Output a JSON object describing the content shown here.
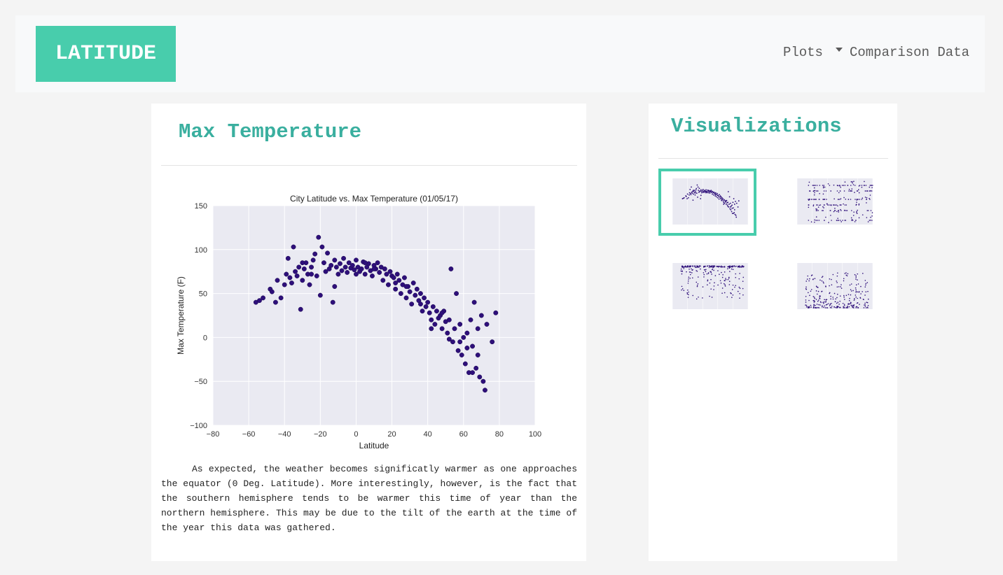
{
  "navbar": {
    "brand": "LATITUDE",
    "links": [
      {
        "label": "Plots",
        "has_caret": true
      },
      {
        "label": "Comparison Data",
        "has_caret": false
      }
    ]
  },
  "main": {
    "title": "Max Temperature",
    "description": "As expected, the weather becomes significatly warmer as one approaches the equator (0 Deg. Latitude). More interestingly, however, is the fact that the southern hemisphere tends to be warmer this time of year than the northern hemisphere. This may be due to the tilt of the earth at the time of the year this data was gathered."
  },
  "sidebar": {
    "title": "Visualizations",
    "thumbnails": [
      {
        "name": "max-temperature",
        "selected": true
      },
      {
        "name": "cloudiness",
        "selected": false
      },
      {
        "name": "humidity",
        "selected": false
      },
      {
        "name": "wind-speed",
        "selected": false
      }
    ]
  },
  "colors": {
    "accent": "#48cdac",
    "heading": "#3aaf9f",
    "plot_bg": "#eaeaf2",
    "marker": "#2e0f7a"
  },
  "chart_data": {
    "type": "scatter",
    "title": "City Latitude vs. Max Temperature (01/05/17)",
    "xlabel": "Latitude",
    "ylabel": "Max Temperature (F)",
    "xlim": [
      -80,
      100
    ],
    "ylim": [
      -100,
      150
    ],
    "xticks": [
      -80,
      -60,
      -40,
      -20,
      0,
      20,
      40,
      60,
      80,
      100
    ],
    "yticks": [
      -100,
      -50,
      0,
      50,
      100,
      150
    ],
    "grid": true,
    "series": [
      {
        "points": [
          [
            -56,
            40
          ],
          [
            -54,
            42
          ],
          [
            -52,
            45
          ],
          [
            -48,
            55
          ],
          [
            -47,
            52
          ],
          [
            -45,
            40
          ],
          [
            -44,
            65
          ],
          [
            -42,
            45
          ],
          [
            -40,
            60
          ],
          [
            -39,
            72
          ],
          [
            -38,
            90
          ],
          [
            -37,
            68
          ],
          [
            -36,
            62
          ],
          [
            -35,
            103
          ],
          [
            -34,
            75
          ],
          [
            -33,
            70
          ],
          [
            -32,
            80
          ],
          [
            -31,
            32
          ],
          [
            -30,
            65
          ],
          [
            -29,
            78
          ],
          [
            -28,
            85
          ],
          [
            -27,
            72
          ],
          [
            -26,
            60
          ],
          [
            -25,
            80
          ],
          [
            -24,
            88
          ],
          [
            -23,
            95
          ],
          [
            -22,
            70
          ],
          [
            -21,
            114
          ],
          [
            -20,
            48
          ],
          [
            -19,
            103
          ],
          [
            -18,
            85
          ],
          [
            -17,
            75
          ],
          [
            -16,
            96
          ],
          [
            -15,
            78
          ],
          [
            -14,
            82
          ],
          [
            -13,
            40
          ],
          [
            -12,
            88
          ],
          [
            -11,
            80
          ],
          [
            -10,
            72
          ],
          [
            -9,
            84
          ],
          [
            -8,
            76
          ],
          [
            -7,
            90
          ],
          [
            -6,
            80
          ],
          [
            -5,
            74
          ],
          [
            -4,
            85
          ],
          [
            -3,
            79
          ],
          [
            -2,
            82
          ],
          [
            -1,
            77
          ],
          [
            0,
            88
          ],
          [
            1,
            80
          ],
          [
            2,
            75
          ],
          [
            3,
            78
          ],
          [
            4,
            86
          ],
          [
            5,
            72
          ],
          [
            6,
            80
          ],
          [
            7,
            84
          ],
          [
            8,
            76
          ],
          [
            9,
            70
          ],
          [
            10,
            82
          ],
          [
            11,
            78
          ],
          [
            12,
            85
          ],
          [
            13,
            74
          ],
          [
            14,
            80
          ],
          [
            15,
            65
          ],
          [
            16,
            78
          ],
          [
            17,
            72
          ],
          [
            18,
            60
          ],
          [
            19,
            75
          ],
          [
            20,
            70
          ],
          [
            21,
            68
          ],
          [
            22,
            55
          ],
          [
            23,
            72
          ],
          [
            24,
            65
          ],
          [
            25,
            50
          ],
          [
            26,
            60
          ],
          [
            27,
            68
          ],
          [
            28,
            45
          ],
          [
            29,
            58
          ],
          [
            30,
            52
          ],
          [
            31,
            38
          ],
          [
            32,
            62
          ],
          [
            33,
            48
          ],
          [
            34,
            55
          ],
          [
            35,
            42
          ],
          [
            36,
            50
          ],
          [
            37,
            30
          ],
          [
            38,
            45
          ],
          [
            39,
            35
          ],
          [
            40,
            40
          ],
          [
            41,
            28
          ],
          [
            42,
            20
          ],
          [
            43,
            35
          ],
          [
            44,
            15
          ],
          [
            45,
            30
          ],
          [
            46,
            22
          ],
          [
            47,
            25
          ],
          [
            48,
            10
          ],
          [
            49,
            30
          ],
          [
            50,
            18
          ],
          [
            51,
            5
          ],
          [
            52,
            20
          ],
          [
            53,
            78
          ],
          [
            54,
            -5
          ],
          [
            55,
            10
          ],
          [
            56,
            50
          ],
          [
            57,
            -15
          ],
          [
            58,
            15
          ],
          [
            59,
            -20
          ],
          [
            60,
            0
          ],
          [
            61,
            -30
          ],
          [
            62,
            5
          ],
          [
            63,
            -40
          ],
          [
            64,
            20
          ],
          [
            65,
            -10
          ],
          [
            66,
            40
          ],
          [
            67,
            -35
          ],
          [
            68,
            10
          ],
          [
            69,
            -45
          ],
          [
            70,
            25
          ],
          [
            71,
            -50
          ],
          [
            72,
            -60
          ],
          [
            73,
            15
          ],
          [
            76,
            -5
          ],
          [
            78,
            28
          ],
          [
            -12,
            58
          ],
          [
            -25,
            72
          ],
          [
            -30,
            85
          ],
          [
            0,
            72
          ],
          [
            5,
            85
          ],
          [
            10,
            78
          ],
          [
            22,
            62
          ],
          [
            28,
            58
          ],
          [
            36,
            38
          ],
          [
            42,
            10
          ],
          [
            48,
            28
          ],
          [
            52,
            -2
          ],
          [
            58,
            -5
          ],
          [
            62,
            -12
          ],
          [
            65,
            -40
          ],
          [
            68,
            -20
          ]
        ]
      }
    ]
  }
}
